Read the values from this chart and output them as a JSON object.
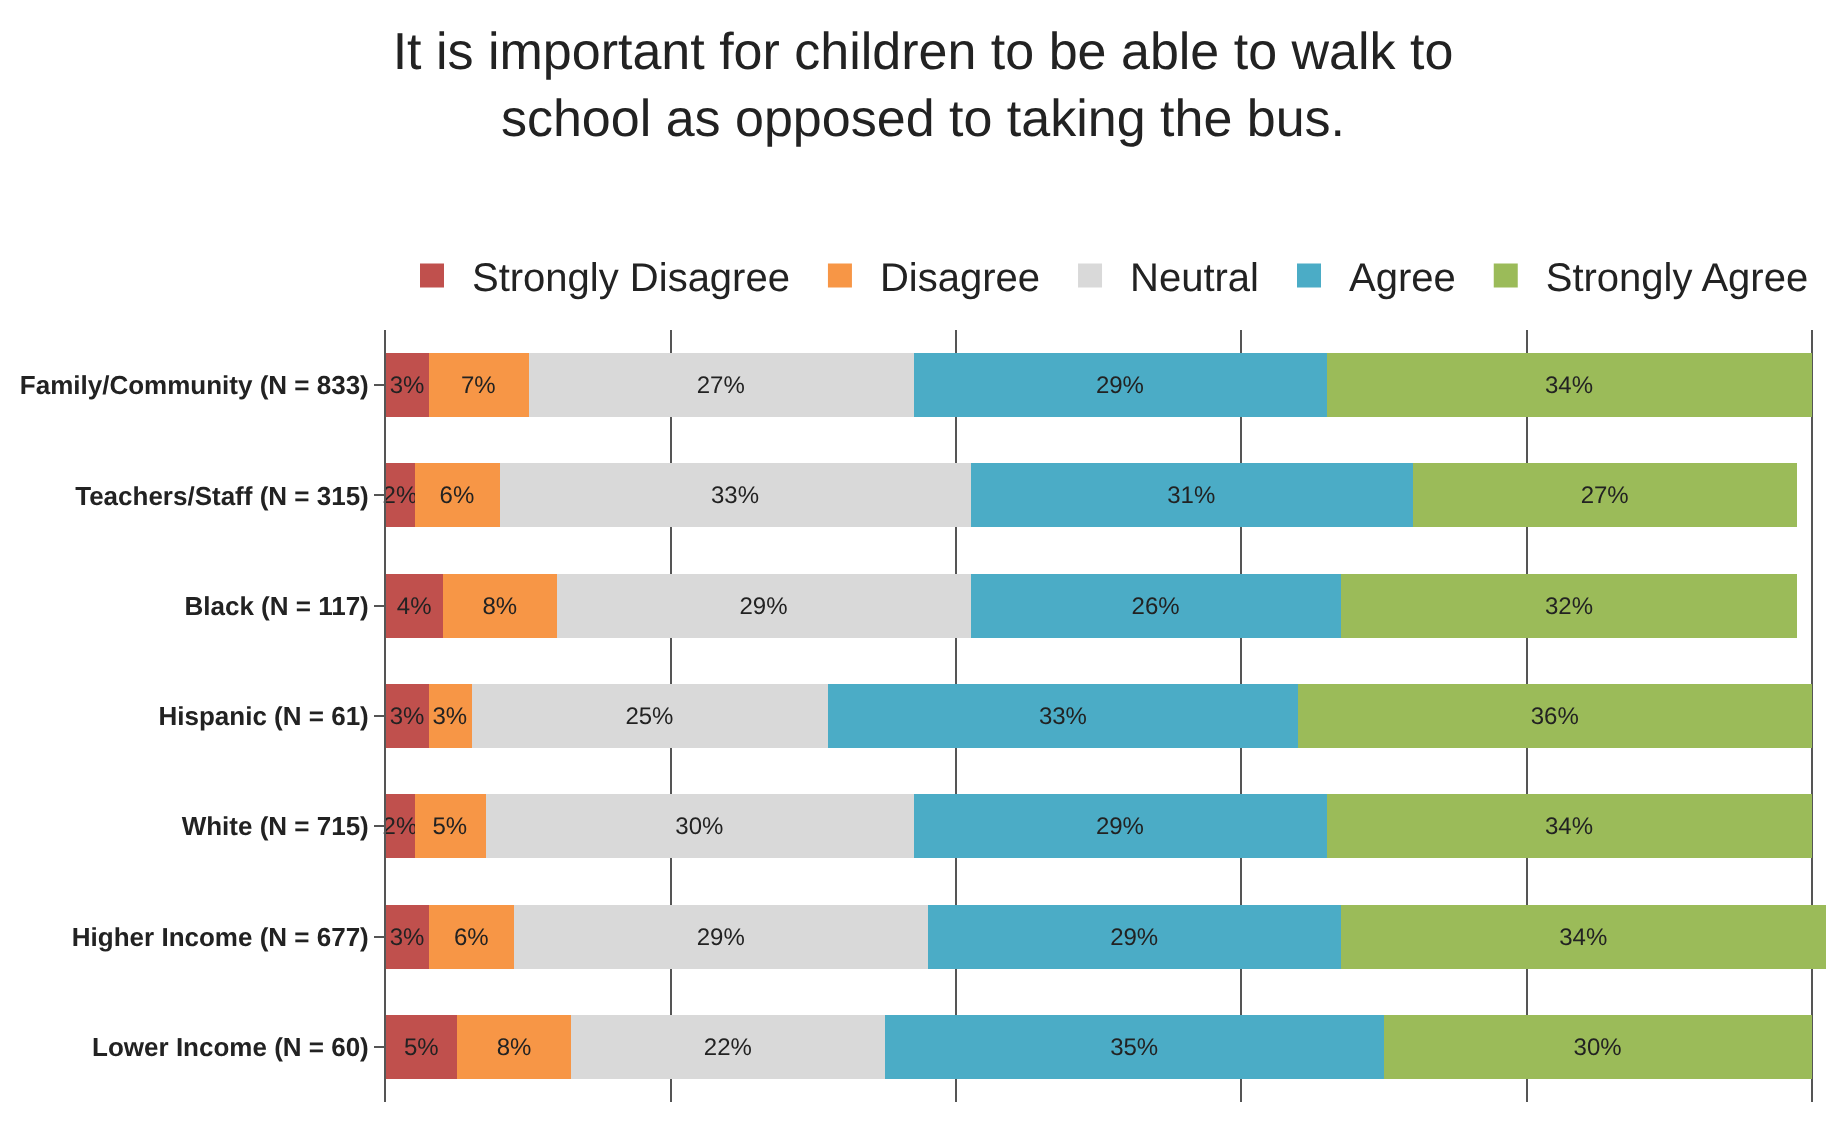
{
  "chart_data": {
    "type": "bar",
    "orientation": "horizontal",
    "stacked": true,
    "title": "It is important for children to be able to walk to school as opposed to taking the bus.",
    "categories": [
      "Family/Community (N = 833)",
      "Teachers/Staff (N = 315)",
      "Black (N = 117)",
      "Hispanic (N = 61)",
      "White (N = 715)",
      "Higher Income (N = 677)",
      "Lower Income (N = 60)"
    ],
    "series": [
      {
        "name": "Strongly Disagree",
        "color": "#c0504d",
        "values": [
          3,
          2,
          4,
          3,
          2,
          3,
          5
        ],
        "value_labels": [
          "3%",
          "2%",
          "4%",
          "3%",
          "2%",
          "3%",
          "5%"
        ]
      },
      {
        "name": "Disagree",
        "color": "#f79646",
        "values": [
          7,
          6,
          8,
          3,
          5,
          6,
          8
        ],
        "value_labels": [
          "7%",
          "6%",
          "8%",
          "3%",
          "5%",
          "6%",
          "8%"
        ]
      },
      {
        "name": "Neutral",
        "color": "#d9d9d9",
        "values": [
          27,
          33,
          29,
          25,
          30,
          29,
          22
        ],
        "value_labels": [
          "27%",
          "33%",
          "29%",
          "25%",
          "30%",
          "29%",
          "22%"
        ]
      },
      {
        "name": "Agree",
        "color": "#4bacc6",
        "values": [
          29,
          31,
          26,
          33,
          29,
          29,
          35
        ],
        "value_labels": [
          "29%",
          "31%",
          "26%",
          "33%",
          "29%",
          "29%",
          "35%"
        ]
      },
      {
        "name": "Strongly Agree",
        "color": "#9bbb59",
        "values": [
          34,
          27,
          32,
          36,
          34,
          34,
          30
        ],
        "value_labels": [
          "34%",
          "27%",
          "32%",
          "36%",
          "34%",
          "34%",
          "30%"
        ]
      }
    ],
    "grid": "x",
    "legend": "top",
    "tick_labels": "y"
  }
}
